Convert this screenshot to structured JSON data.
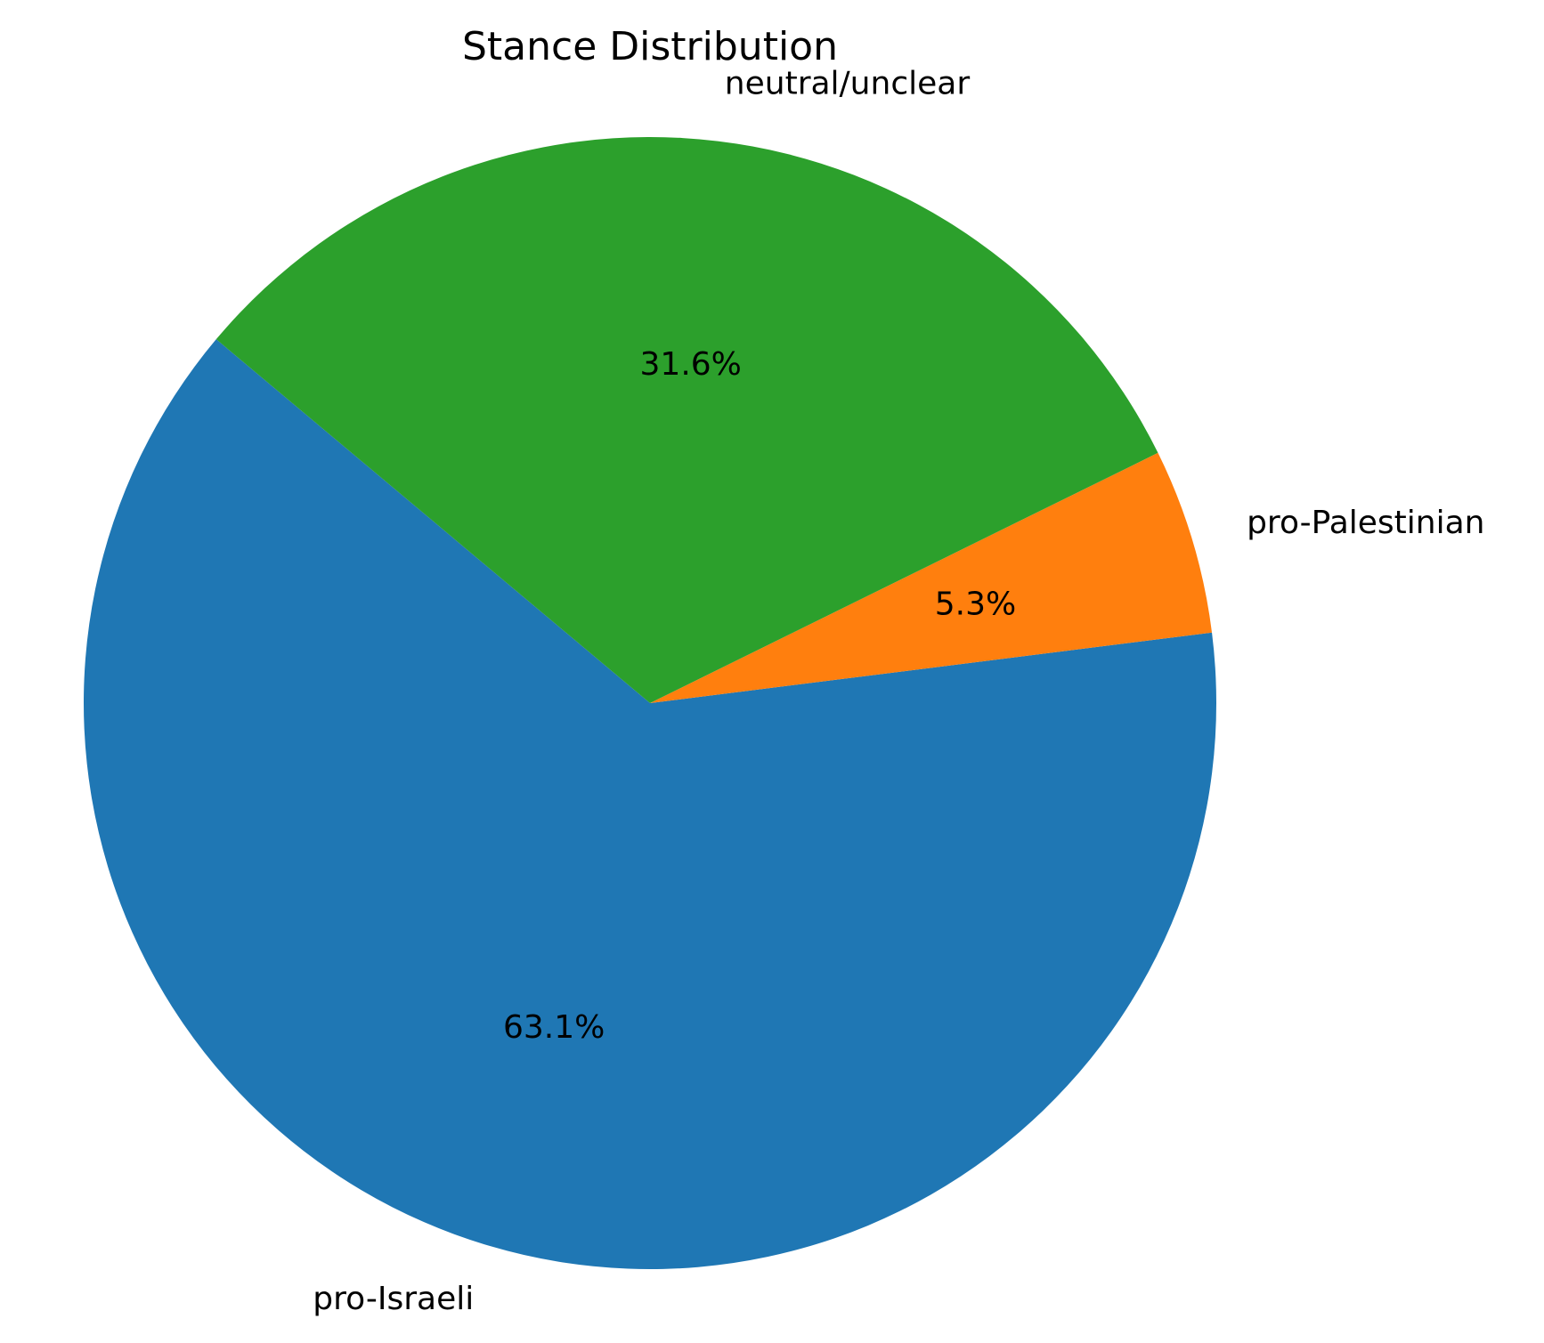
{
  "chart_data": {
    "type": "pie",
    "title": "Stance Distribution",
    "start_angle_deg": 140,
    "direction": "counterclockwise",
    "slices": [
      {
        "label": "pro-Israeli",
        "value": 63.1,
        "pct_label": "63.1%",
        "color": "#1f77b4"
      },
      {
        "label": "pro-Palestinian",
        "value": 5.3,
        "pct_label": "5.3%",
        "color": "#ff7f0e"
      },
      {
        "label": "neutral/unclear",
        "value": 31.6,
        "pct_label": "31.6%",
        "color": "#2ca02c"
      }
    ],
    "legend": "none"
  }
}
